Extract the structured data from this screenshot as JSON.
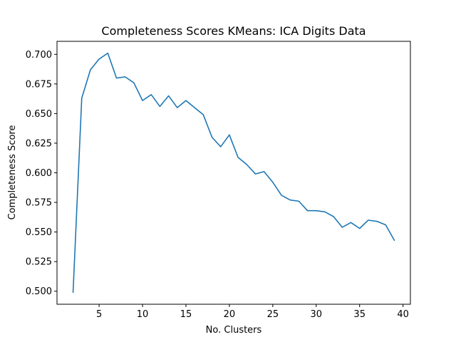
{
  "chart_data": {
    "type": "line",
    "title": "Completeness Scores KMeans: ICA Digits Data",
    "xlabel": "No. Clusters",
    "ylabel": "Completeness Score",
    "xlim": [
      0.15,
      40.85
    ],
    "ylim": [
      0.489,
      0.711
    ],
    "xticks": [
      5,
      10,
      15,
      20,
      25,
      30,
      35,
      40
    ],
    "yticks": [
      0.5,
      0.525,
      0.55,
      0.575,
      0.6,
      0.625,
      0.65,
      0.675,
      0.7
    ],
    "xtick_labels": [
      "5",
      "10",
      "15",
      "20",
      "25",
      "30",
      "35",
      "40"
    ],
    "ytick_labels": [
      "0.500",
      "0.525",
      "0.550",
      "0.575",
      "0.600",
      "0.625",
      "0.650",
      "0.675",
      "0.700"
    ],
    "grid": false,
    "legend": "none",
    "line_color": "#1f77b4",
    "series": [
      {
        "x": [
          2,
          3,
          4,
          5,
          6,
          7,
          8,
          9,
          10,
          11,
          12,
          13,
          14,
          15,
          16,
          17,
          18,
          19,
          20,
          21,
          22,
          23,
          24,
          25,
          26,
          27,
          28,
          29,
          30,
          31,
          32,
          33,
          34,
          35,
          36,
          37,
          38,
          39
        ],
        "values": [
          0.499,
          0.663,
          0.687,
          0.696,
          0.701,
          0.68,
          0.681,
          0.676,
          0.661,
          0.666,
          0.656,
          0.665,
          0.655,
          0.661,
          0.655,
          0.649,
          0.63,
          0.622,
          0.632,
          0.613,
          0.607,
          0.599,
          0.601,
          0.592,
          0.581,
          0.577,
          0.576,
          0.568,
          0.568,
          0.567,
          0.563,
          0.554,
          0.558,
          0.553,
          0.56,
          0.559,
          0.556,
          0.543
        ]
      }
    ]
  }
}
